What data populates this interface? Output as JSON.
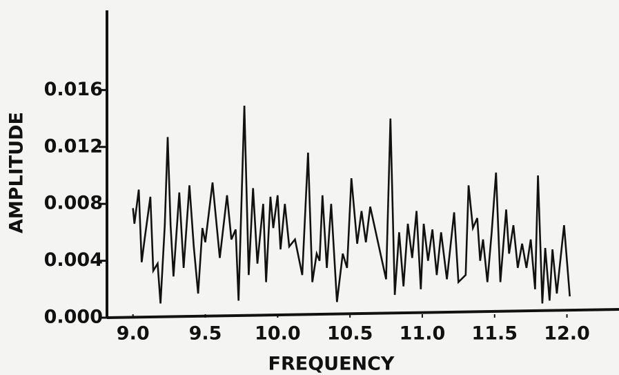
{
  "chart_data": {
    "type": "line",
    "xlabel": "FREQUENCY",
    "ylabel": "AMPLITUDE",
    "x": [
      9.0,
      9.01,
      9.04,
      9.06,
      9.08,
      9.12,
      9.14,
      9.17,
      9.19,
      9.22,
      9.24,
      9.26,
      9.28,
      9.32,
      9.35,
      9.39,
      9.42,
      9.45,
      9.48,
      9.5,
      9.55,
      9.6,
      9.65,
      9.68,
      9.71,
      9.73,
      9.77,
      9.8,
      9.83,
      9.86,
      9.9,
      9.92,
      9.95,
      9.97,
      10.0,
      10.02,
      10.05,
      10.08,
      10.12,
      10.17,
      10.21,
      10.24,
      10.27,
      10.29,
      10.31,
      10.34,
      10.37,
      10.41,
      10.45,
      10.48,
      10.51,
      10.55,
      10.58,
      10.61,
      10.64,
      10.7,
      10.75,
      10.78,
      10.81,
      10.84,
      10.87,
      10.9,
      10.93,
      10.96,
      10.99,
      11.01,
      11.04,
      11.07,
      11.1,
      11.13,
      11.17,
      11.22,
      11.25,
      11.3,
      11.32,
      11.35,
      11.38,
      11.4,
      11.42,
      11.45,
      11.48,
      11.51,
      11.54,
      11.58,
      11.6,
      11.63,
      11.66,
      11.69,
      11.72,
      11.75,
      11.78,
      11.8,
      11.83,
      11.85,
      11.88,
      11.9,
      11.93,
      11.98,
      12.02
    ],
    "values": [
      0.0077,
      0.0066,
      0.009,
      0.0039,
      0.0055,
      0.0085,
      0.0033,
      0.0038,
      0.001,
      0.0065,
      0.0127,
      0.0065,
      0.0029,
      0.0088,
      0.0035,
      0.0093,
      0.005,
      0.0017,
      0.0063,
      0.0053,
      0.0095,
      0.0042,
      0.0086,
      0.0055,
      0.0062,
      0.0012,
      0.0149,
      0.003,
      0.0091,
      0.0038,
      0.008,
      0.0025,
      0.0085,
      0.0063,
      0.0086,
      0.0048,
      0.008,
      0.005,
      0.0055,
      0.003,
      0.0116,
      0.0025,
      0.0045,
      0.004,
      0.0086,
      0.0035,
      0.008,
      0.0011,
      0.0045,
      0.0035,
      0.0098,
      0.0052,
      0.0075,
      0.0053,
      0.0078,
      0.005,
      0.0027,
      0.014,
      0.0016,
      0.006,
      0.0022,
      0.0066,
      0.0042,
      0.0075,
      0.002,
      0.0066,
      0.004,
      0.0062,
      0.003,
      0.006,
      0.0027,
      0.0074,
      0.0025,
      0.003,
      0.0093,
      0.0063,
      0.007,
      0.004,
      0.0055,
      0.0025,
      0.006,
      0.0102,
      0.0025,
      0.0076,
      0.0045,
      0.0065,
      0.0035,
      0.0052,
      0.0035,
      0.0055,
      0.002,
      0.01,
      0.001,
      0.0049,
      0.0012,
      0.0048,
      0.0017,
      0.0065,
      0.0015
    ],
    "color": "#111111",
    "xlim": [
      8.82,
      12.36
    ],
    "xticks": [
      {
        "value": 9.0,
        "label": "9.0"
      },
      9.5,
      {
        "value": 10.0,
        "label": "10.0"
      },
      10.5,
      {
        "value": 11.0,
        "label": "11.0"
      },
      11.5,
      {
        "value": 12.0,
        "label": "12.0"
      }
    ],
    "ylim": [
      0,
      0.0216
    ],
    "yticks": [
      {
        "value": 0,
        "label": "0.000"
      },
      {
        "value": 0.004,
        "label": "0.004"
      },
      {
        "value": 0.008,
        "label": "0.008"
      },
      {
        "value": 0.012,
        "label": "0.012"
      },
      {
        "value": 0.016,
        "label": "0.016"
      }
    ]
  }
}
